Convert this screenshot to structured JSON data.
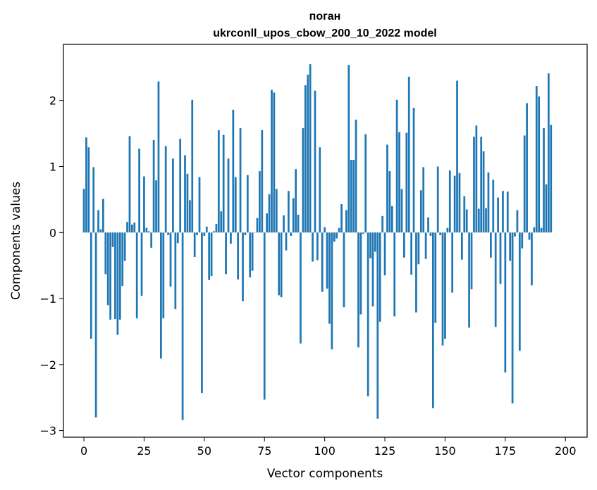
{
  "chart_data": {
    "type": "bar",
    "title_line1": "поган",
    "title_line2": "ukrconll_upos_cbow_200_10_2022 model",
    "xlabel": "Vector components",
    "ylabel": "Components values",
    "xlim": [
      -8.5,
      209
    ],
    "ylim": [
      -3.1,
      2.85
    ],
    "xticks": [
      0,
      25,
      50,
      75,
      100,
      125,
      150,
      175,
      200
    ],
    "yticks": [
      -3,
      -2,
      -1,
      0,
      1,
      2
    ],
    "bar_color": "#1f77b4",
    "grid": false,
    "values": [
      0.66,
      1.44,
      1.29,
      -1.61,
      0.99,
      -2.8,
      0.34,
      0.05,
      0.51,
      -0.63,
      -1.1,
      -1.32,
      -0.22,
      -1.31,
      -1.55,
      -1.32,
      -0.81,
      -0.43,
      0.16,
      1.46,
      0.12,
      0.15,
      -1.3,
      1.27,
      -0.96,
      0.85,
      0.07,
      0.02,
      -0.23,
      1.4,
      0.79,
      2.29,
      -1.91,
      -1.3,
      1.31,
      -0.04,
      -0.82,
      1.12,
      -1.16,
      -0.16,
      1.42,
      -2.84,
      1.17,
      0.89,
      0.49,
      2.01,
      -0.37,
      -0.04,
      0.84,
      -2.43,
      -0.05,
      0.09,
      -0.72,
      -0.66,
      0.02,
      0.13,
      1.55,
      0.32,
      1.48,
      -0.63,
      1.12,
      -0.17,
      1.86,
      0.84,
      -0.71,
      1.58,
      -1.04,
      -0.04,
      0.87,
      -0.68,
      -0.58,
      -0.0,
      0.22,
      0.93,
      1.55,
      -2.53,
      0.29,
      0.58,
      2.16,
      2.12,
      0.66,
      -0.95,
      -0.98,
      0.26,
      -0.27,
      0.63,
      -0.05,
      0.52,
      0.96,
      0.27,
      -1.68,
      1.58,
      2.23,
      2.39,
      2.55,
      -0.44,
      2.15,
      -0.42,
      1.29,
      -0.9,
      0.08,
      -0.85,
      -1.38,
      -1.77,
      -0.14,
      -0.09,
      0.07,
      0.43,
      -1.13,
      0.34,
      2.54,
      1.1,
      1.1,
      1.71,
      -1.74,
      -1.24,
      -0.02,
      1.49,
      -2.48,
      -0.39,
      -1.12,
      -0.29,
      -2.82,
      -1.35,
      0.25,
      -0.65,
      1.33,
      0.93,
      0.4,
      -1.27,
      2.01,
      1.52,
      0.66,
      -0.38,
      1.51,
      2.36,
      -0.64,
      1.89,
      -1.21,
      -0.48,
      0.64,
      0.99,
      -0.4,
      0.23,
      -0.05,
      -2.66,
      -1.37,
      1.0,
      -0.04,
      -1.71,
      -1.61,
      0.07,
      0.94,
      -0.91,
      0.86,
      2.3,
      0.9,
      -0.41,
      0.55,
      0.35,
      -1.44,
      -0.86,
      1.45,
      1.62,
      0.36,
      1.45,
      1.23,
      0.37,
      0.91,
      -0.38,
      0.8,
      -1.43,
      0.53,
      -0.78,
      0.63,
      -2.12,
      0.62,
      -0.43,
      -2.59,
      -0.06,
      0.34,
      -1.79,
      -0.24,
      1.47,
      1.96,
      -0.11,
      -0.8,
      0.08,
      2.22,
      2.06,
      0.07,
      1.58,
      0.73,
      2.41,
      1.63
    ]
  }
}
